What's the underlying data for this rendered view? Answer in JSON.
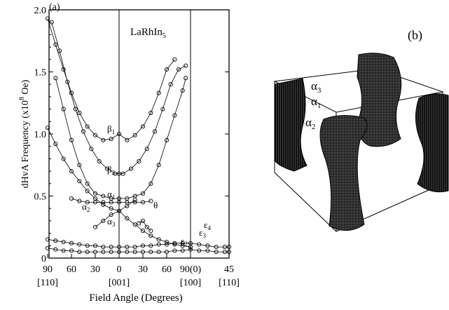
{
  "panel_a": {
    "label": "(a)",
    "compound": "LaRhIn",
    "compound_sub": "5",
    "ylabel_main": "dHvA  Frequency  (x10",
    "ylabel_sup": "8",
    "ylabel_unit": " Oe)",
    "xlabel": "Field Angle (Degrees)"
  },
  "panel_b": {
    "label": "(b)",
    "labels": [
      {
        "base": "α",
        "sub": "3"
      },
      {
        "base": "α",
        "sub": "1"
      },
      {
        "base": "α",
        "sub": "2"
      }
    ]
  },
  "chart_data": {
    "type": "scatter",
    "ylim": [
      0,
      2.0
    ],
    "y_ticks": [
      "0",
      "0.5",
      "1.0",
      "1.5",
      "2.0"
    ],
    "x_ticks": [
      "90",
      "60",
      "30",
      "0",
      "30",
      "60",
      "90(0)",
      "45"
    ],
    "x_dir_labels": [
      "[110]",
      "[001]",
      "[100]",
      "[110]"
    ],
    "annotations": [
      {
        "base": "β",
        "sub": "1"
      },
      {
        "base": "β",
        "sub": "2"
      },
      {
        "base": "α",
        "sub": "1"
      },
      {
        "base": "α",
        "sub": "2"
      },
      {
        "base": "α",
        "sub": "3"
      },
      {
        "base": "ε",
        "sub": "2"
      },
      {
        "base": "ε",
        "sub": "3"
      },
      {
        "base": "ε",
        "sub": "4"
      },
      {
        "base": "θ",
        "sub": ""
      }
    ],
    "series": [
      {
        "key": "beta1",
        "x": [
          -90,
          -80,
          -70,
          -60,
          -50,
          -40,
          -30,
          -20,
          -10,
          0,
          10,
          20,
          30,
          40,
          50,
          60,
          70
        ],
        "y": [
          1.93,
          1.72,
          1.52,
          1.33,
          1.17,
          1.06,
          0.99,
          0.95,
          0.96,
          1.0,
          0.95,
          0.99,
          1.06,
          1.17,
          1.33,
          1.52,
          1.6
        ]
      },
      {
        "key": "beta2",
        "x": [
          -85,
          -75,
          -65,
          -55,
          -45,
          -35,
          -25,
          -15,
          -5,
          0,
          5,
          15,
          25,
          35,
          45,
          55,
          65,
          75,
          84
        ],
        "y": [
          1.9,
          1.67,
          1.42,
          1.2,
          1.02,
          0.88,
          0.78,
          0.72,
          0.68,
          0.68,
          0.68,
          0.72,
          0.78,
          0.88,
          1.02,
          1.2,
          1.4,
          1.52,
          1.55
        ]
      },
      {
        "key": "alpha1",
        "x": [
          -80,
          -70,
          -60,
          -50,
          -40,
          -30,
          -20,
          -10,
          0,
          10,
          20,
          30,
          40,
          50,
          60,
          70,
          80,
          84
        ],
        "y": [
          1.45,
          1.2,
          0.95,
          0.75,
          0.6,
          0.52,
          0.5,
          0.48,
          0.48,
          0.48,
          0.5,
          0.52,
          0.6,
          0.75,
          0.95,
          1.15,
          1.35,
          1.45
        ]
      },
      {
        "key": "alpha2",
        "x": [
          -60,
          -50,
          -40,
          -30,
          -20,
          -10,
          0,
          10,
          20,
          30,
          40
        ],
        "y": [
          0.48,
          0.46,
          0.45,
          0.45,
          0.45,
          0.45,
          0.45,
          0.45,
          0.45,
          0.45,
          0.46
        ]
      },
      {
        "key": "alpha3_down",
        "x": [
          -90,
          -80,
          -70,
          -60,
          -50,
          -40,
          -30,
          -20,
          -10,
          0,
          10,
          20,
          30,
          40,
          50,
          60,
          70,
          80,
          90
        ],
        "y": [
          1.05,
          0.92,
          0.8,
          0.7,
          0.62,
          0.54,
          0.48,
          0.43,
          0.4,
          0.38,
          0.32,
          0.27,
          0.22,
          0.18,
          0.15,
          0.13,
          0.11,
          0.1,
          0.09
        ]
      },
      {
        "key": "alpha3_up",
        "x": [
          -30,
          -20,
          -10,
          0,
          10,
          20
        ],
        "y": [
          0.25,
          0.3,
          0.35,
          0.38,
          0.42,
          0.47
        ]
      },
      {
        "key": "theta",
        "x": [
          25,
          30,
          35,
          40
        ],
        "y": [
          0.28,
          0.3,
          0.25,
          0.22
        ]
      },
      {
        "key": "epsilon_a",
        "x": [
          -90,
          -80,
          -70,
          -60,
          -50,
          -40,
          -30,
          -20,
          -10,
          0,
          10,
          20,
          30,
          40,
          50,
          60,
          70,
          80,
          90,
          100,
          110,
          120,
          130,
          135
        ],
        "y": [
          0.15,
          0.14,
          0.13,
          0.12,
          0.11,
          0.1,
          0.1,
          0.09,
          0.09,
          0.09,
          0.09,
          0.09,
          0.1,
          0.1,
          0.11,
          0.11,
          0.12,
          0.12,
          0.12,
          0.11,
          0.1,
          0.09,
          0.09,
          0.09
        ]
      },
      {
        "key": "epsilon_b",
        "x": [
          -90,
          -80,
          -70,
          -60,
          -50,
          -40,
          -30,
          -20,
          -10,
          0,
          10,
          20,
          30,
          40,
          50,
          60,
          70,
          80,
          90,
          100,
          110,
          120,
          130,
          135
        ],
        "y": [
          0.08,
          0.07,
          0.06,
          0.06,
          0.05,
          0.05,
          0.05,
          0.05,
          0.05,
          0.05,
          0.05,
          0.05,
          0.05,
          0.05,
          0.05,
          0.05,
          0.06,
          0.06,
          0.07,
          0.06,
          0.06,
          0.05,
          0.05,
          0.05
        ]
      }
    ]
  }
}
